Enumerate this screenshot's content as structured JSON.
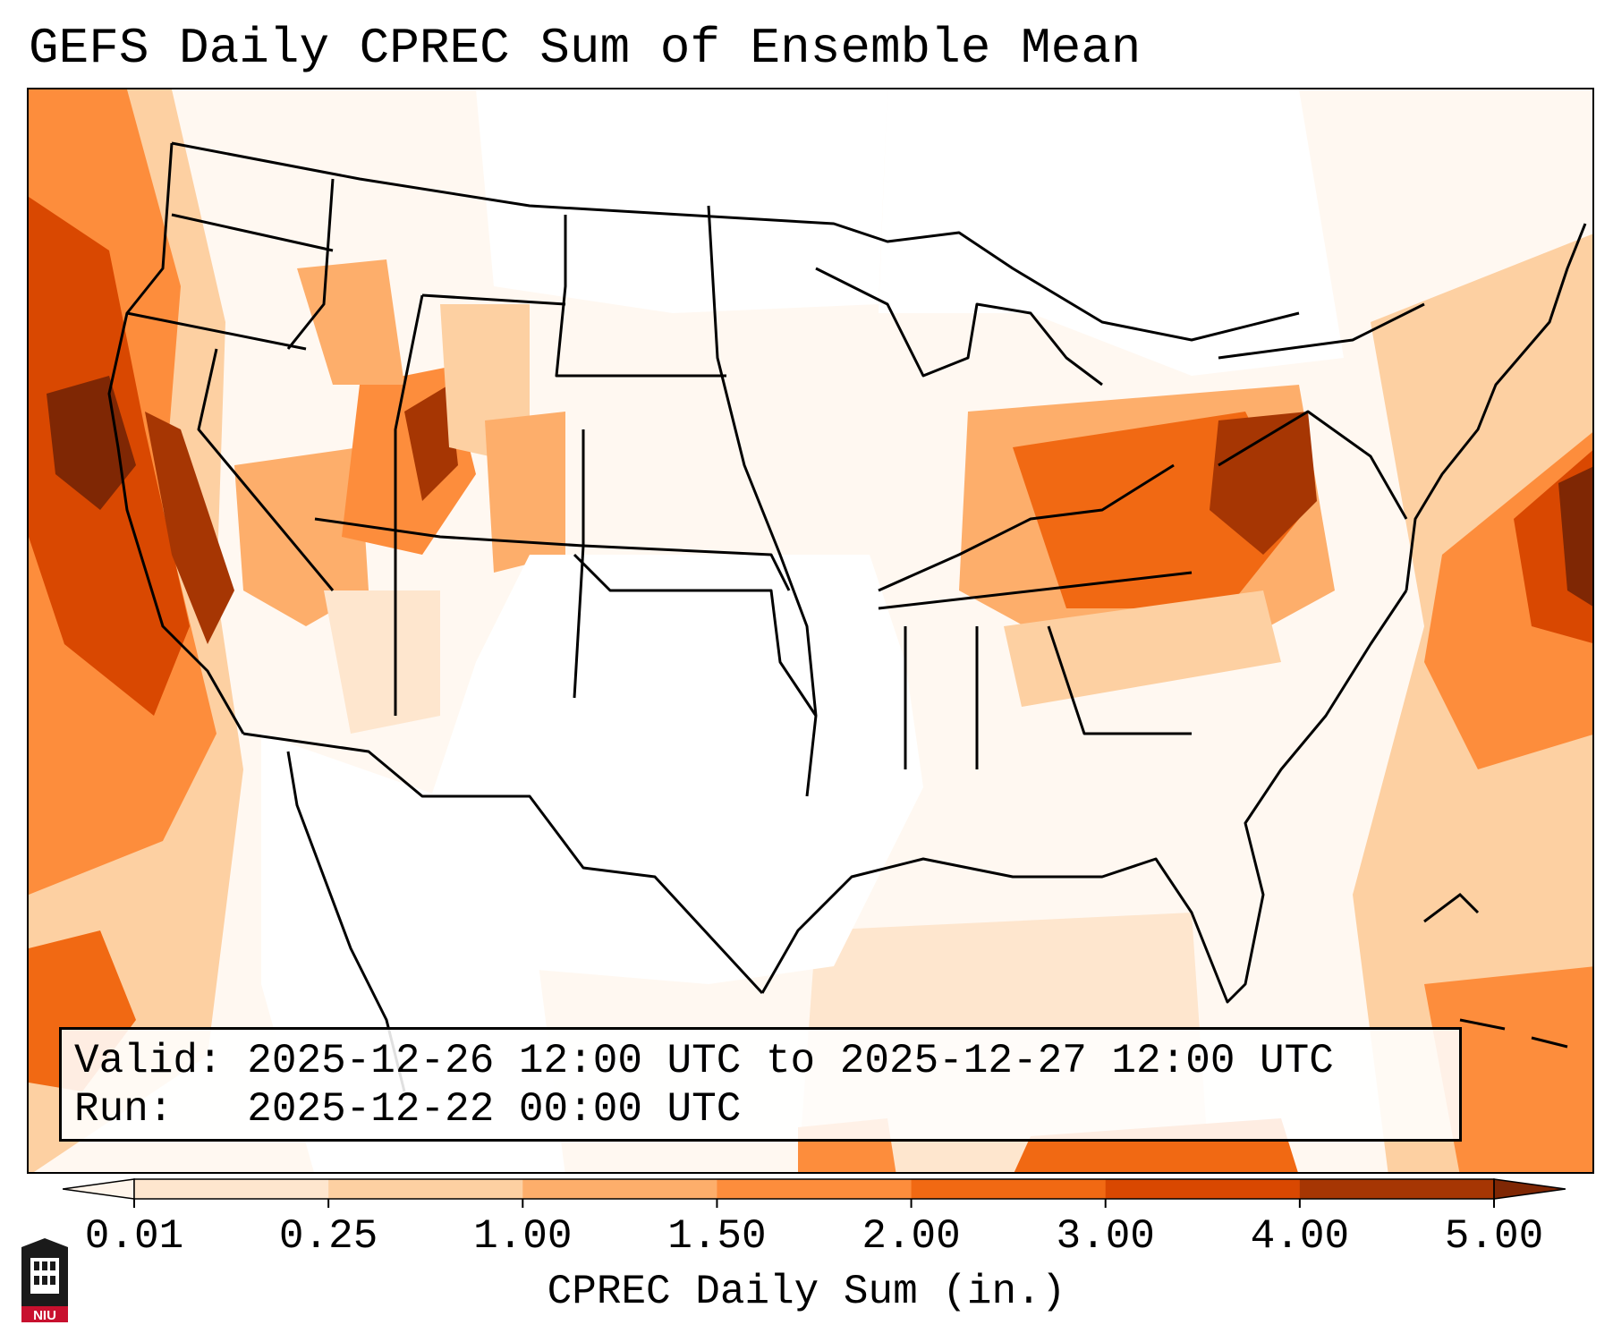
{
  "title": "GEFS Daily CPREC Sum of Ensemble Mean",
  "info": {
    "valid_label": "Valid:",
    "valid_value": "2025-12-26 12:00 UTC to 2025-12-27 12:00 UTC",
    "run_label": "Run:",
    "run_value": "2025-12-22 00:00 UTC"
  },
  "colorbar": {
    "label": "CPREC Daily Sum (in.)",
    "ticks": [
      "0.01",
      "0.25",
      "1.00",
      "1.50",
      "2.00",
      "3.00",
      "4.00",
      "5.00"
    ],
    "colors": [
      "#fff5eb",
      "#fee6ce",
      "#fdd0a2",
      "#fdae6b",
      "#fd8d3c",
      "#f16913",
      "#d94801",
      "#a63603",
      "#7f2704"
    ]
  },
  "logo": {
    "text": "NIU"
  }
}
